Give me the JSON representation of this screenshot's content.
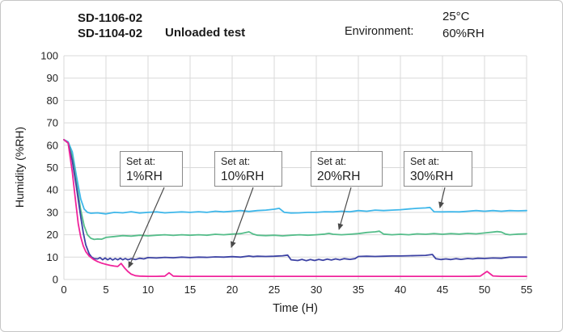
{
  "header": {
    "model_line1": "SD-1106-02",
    "model_line2": "SD-1104-02",
    "test_label": "Unloaded test",
    "environment_label": "Environment:",
    "environment_temp": "25°C",
    "environment_rh": "60%RH"
  },
  "chart_data": {
    "type": "line",
    "title": "Unloaded test",
    "xlabel": "Time (H)",
    "ylabel": "Humidity (%RH)",
    "xlim": [
      0,
      55
    ],
    "ylim": [
      0,
      100
    ],
    "xticks": [
      0,
      5,
      10,
      15,
      20,
      25,
      30,
      35,
      40,
      45,
      50,
      55
    ],
    "yticks": [
      0,
      10,
      20,
      30,
      40,
      50,
      60,
      70,
      80,
      90,
      100
    ],
    "grid": true,
    "grid_color": "#d9d9d9",
    "tick_color": "#222222",
    "arrow_color": "#4a4a4a",
    "series": [
      {
        "name": "Set at: 30%RH",
        "color": "#3eb7ea",
        "points": [
          [
            0,
            62.5
          ],
          [
            0.5,
            61.5
          ],
          [
            1,
            57
          ],
          [
            1.5,
            46
          ],
          [
            2,
            36
          ],
          [
            2.4,
            31.5
          ],
          [
            2.8,
            30
          ],
          [
            3.2,
            29.6
          ],
          [
            4,
            29.8
          ],
          [
            5,
            29.3
          ],
          [
            6,
            30
          ],
          [
            7,
            29.8
          ],
          [
            8,
            30.3
          ],
          [
            9,
            29.7
          ],
          [
            10,
            30
          ],
          [
            11,
            30.2
          ],
          [
            12,
            29.8
          ],
          [
            13,
            30
          ],
          [
            14,
            30.2
          ],
          [
            15,
            30
          ],
          [
            16,
            30.3
          ],
          [
            17,
            30
          ],
          [
            18,
            30.5
          ],
          [
            19,
            30.2
          ],
          [
            20,
            30.5
          ],
          [
            21,
            30.8
          ],
          [
            22,
            30.4
          ],
          [
            23,
            30.8
          ],
          [
            24,
            31
          ],
          [
            25,
            31.4
          ],
          [
            25.6,
            31.8
          ],
          [
            26.2,
            30
          ],
          [
            27,
            29.7
          ],
          [
            28,
            29.8
          ],
          [
            29,
            30
          ],
          [
            30,
            30
          ],
          [
            31,
            30.3
          ],
          [
            32,
            30.2
          ],
          [
            33,
            30.5
          ],
          [
            34,
            30.3
          ],
          [
            35,
            30.8
          ],
          [
            36,
            30.5
          ],
          [
            37,
            31
          ],
          [
            38,
            30.8
          ],
          [
            39,
            31
          ],
          [
            40,
            31.2
          ],
          [
            41,
            31.5
          ],
          [
            42,
            31.8
          ],
          [
            43,
            32
          ],
          [
            43.5,
            32.2
          ],
          [
            44,
            30.3
          ],
          [
            45,
            30.2
          ],
          [
            46,
            30.3
          ],
          [
            47,
            30.2
          ],
          [
            48,
            30.5
          ],
          [
            49,
            30.8
          ],
          [
            50,
            30.5
          ],
          [
            51,
            30.8
          ],
          [
            52,
            30.5
          ],
          [
            53,
            30.8
          ],
          [
            54,
            30.7
          ],
          [
            55,
            30.8
          ]
        ]
      },
      {
        "name": "Set at: 20%RH",
        "color": "#55bd8a",
        "points": [
          [
            0,
            62.5
          ],
          [
            0.5,
            61
          ],
          [
            1,
            55
          ],
          [
            1.5,
            43
          ],
          [
            2,
            31
          ],
          [
            2.4,
            24
          ],
          [
            2.8,
            20
          ],
          [
            3.2,
            18.4
          ],
          [
            3.6,
            17.9
          ],
          [
            4,
            18.1
          ],
          [
            4.5,
            18
          ],
          [
            5,
            18.8
          ],
          [
            6,
            19.2
          ],
          [
            7,
            19.6
          ],
          [
            8,
            19.4
          ],
          [
            9,
            19.8
          ],
          [
            10,
            19.5
          ],
          [
            11,
            19.8
          ],
          [
            12,
            20
          ],
          [
            13,
            19.7
          ],
          [
            14,
            20
          ],
          [
            15,
            19.8
          ],
          [
            16,
            20
          ],
          [
            17,
            19.8
          ],
          [
            18,
            20.2
          ],
          [
            19,
            20
          ],
          [
            20,
            20.3
          ],
          [
            21,
            20.5
          ],
          [
            22,
            21.3
          ],
          [
            22.5,
            20.3
          ],
          [
            23,
            19.8
          ],
          [
            24,
            19.6
          ],
          [
            25,
            19.8
          ],
          [
            26,
            19.5
          ],
          [
            27,
            19.8
          ],
          [
            28,
            20
          ],
          [
            29,
            19.8
          ],
          [
            30,
            20
          ],
          [
            31,
            20.3
          ],
          [
            31.5,
            20.6
          ],
          [
            32,
            20.2
          ],
          [
            33,
            20
          ],
          [
            34,
            20.2
          ],
          [
            35,
            20.5
          ],
          [
            36,
            21
          ],
          [
            37,
            21.3
          ],
          [
            37.5,
            21.6
          ],
          [
            38,
            20.3
          ],
          [
            39,
            20
          ],
          [
            40,
            20.2
          ],
          [
            41,
            20
          ],
          [
            42,
            20.4
          ],
          [
            43,
            20.2
          ],
          [
            44,
            20.5
          ],
          [
            45,
            20.2
          ],
          [
            46,
            20.5
          ],
          [
            47,
            20.3
          ],
          [
            48,
            20.6
          ],
          [
            49,
            20.4
          ],
          [
            50,
            20.8
          ],
          [
            51,
            21.2
          ],
          [
            51.5,
            21.4
          ],
          [
            52,
            21.2
          ],
          [
            52.5,
            20.3
          ],
          [
            53,
            20
          ],
          [
            54,
            20.3
          ],
          [
            55,
            20.4
          ]
        ]
      },
      {
        "name": "Set at: 10%RH",
        "color": "#3d43a4",
        "points": [
          [
            0,
            62.5
          ],
          [
            0.5,
            61
          ],
          [
            1,
            53
          ],
          [
            1.5,
            41
          ],
          [
            2,
            28
          ],
          [
            2.3,
            21
          ],
          [
            2.6,
            15.5
          ],
          [
            3,
            11.5
          ],
          [
            3.3,
            10
          ],
          [
            3.6,
            9.3
          ],
          [
            4,
            9.2
          ],
          [
            4.3,
            9.8
          ],
          [
            4.6,
            8.8
          ],
          [
            4.9,
            9.6
          ],
          [
            5.2,
            8.8
          ],
          [
            5.5,
            9.5
          ],
          [
            5.8,
            8.7
          ],
          [
            6.1,
            9.4
          ],
          [
            6.4,
            8.8
          ],
          [
            6.7,
            9.5
          ],
          [
            7,
            8.8
          ],
          [
            7.3,
            9.4
          ],
          [
            7.6,
            8.8
          ],
          [
            8,
            9.3
          ],
          [
            8.5,
            8.9
          ],
          [
            9,
            9.5
          ],
          [
            9.5,
            9.2
          ],
          [
            10,
            9.8
          ],
          [
            11,
            9.6
          ],
          [
            12,
            9.9
          ],
          [
            13,
            9.7
          ],
          [
            14,
            10
          ],
          [
            15,
            9.8
          ],
          [
            16,
            10
          ],
          [
            17,
            9.9
          ],
          [
            18,
            10.1
          ],
          [
            19,
            10
          ],
          [
            20,
            10.2
          ],
          [
            21,
            10
          ],
          [
            22,
            10.5
          ],
          [
            22.5,
            10.2
          ],
          [
            23,
            10.4
          ],
          [
            24,
            10.3
          ],
          [
            25,
            10.4
          ],
          [
            26,
            10.6
          ],
          [
            26.6,
            10.9
          ],
          [
            27,
            8.8
          ],
          [
            27.8,
            8.5
          ],
          [
            28.3,
            9
          ],
          [
            28.8,
            8.4
          ],
          [
            29.3,
            8.9
          ],
          [
            29.8,
            8.5
          ],
          [
            30.3,
            9
          ],
          [
            30.8,
            8.6
          ],
          [
            31.3,
            9.1
          ],
          [
            31.8,
            8.7
          ],
          [
            32.3,
            9.2
          ],
          [
            32.8,
            8.8
          ],
          [
            33.3,
            9.3
          ],
          [
            34,
            9
          ],
          [
            34.6,
            9.3
          ],
          [
            35,
            10.3
          ],
          [
            36,
            10.4
          ],
          [
            37,
            10.3
          ],
          [
            38,
            10.4
          ],
          [
            39,
            10.5
          ],
          [
            40,
            10.5
          ],
          [
            41,
            10.6
          ],
          [
            42,
            10.7
          ],
          [
            43,
            10.8
          ],
          [
            43.8,
            11.2
          ],
          [
            44.2,
            9.3
          ],
          [
            44.8,
            8.9
          ],
          [
            45.4,
            9.2
          ],
          [
            46,
            8.9
          ],
          [
            46.6,
            9.3
          ],
          [
            47.2,
            9
          ],
          [
            48,
            9.4
          ],
          [
            48.6,
            9.2
          ],
          [
            49.2,
            9.5
          ],
          [
            50,
            9.4
          ],
          [
            51,
            9.6
          ],
          [
            52,
            9.5
          ],
          [
            53,
            10
          ],
          [
            54,
            10
          ],
          [
            55,
            10
          ]
        ]
      },
      {
        "name": "Set at: 1%RH",
        "color": "#f0239b",
        "points": [
          [
            0,
            62.5
          ],
          [
            0.5,
            61
          ],
          [
            1,
            48
          ],
          [
            1.3,
            38
          ],
          [
            1.7,
            25
          ],
          [
            2,
            19
          ],
          [
            2.3,
            15
          ],
          [
            2.6,
            12.5
          ],
          [
            3,
            10.5
          ],
          [
            3.5,
            9
          ],
          [
            4,
            8
          ],
          [
            4.5,
            7.3
          ],
          [
            5,
            6.8
          ],
          [
            5.5,
            6.3
          ],
          [
            6,
            6
          ],
          [
            6.4,
            5.8
          ],
          [
            6.8,
            7.2
          ],
          [
            7.2,
            5.2
          ],
          [
            7.6,
            3.6
          ],
          [
            8,
            2.4
          ],
          [
            8.5,
            1.7
          ],
          [
            9,
            1.5
          ],
          [
            10,
            1.4
          ],
          [
            11,
            1.4
          ],
          [
            12,
            1.5
          ],
          [
            12.5,
            3
          ],
          [
            13,
            1.5
          ],
          [
            14,
            1.4
          ],
          [
            16,
            1.4
          ],
          [
            18,
            1.4
          ],
          [
            20,
            1.4
          ],
          [
            22,
            1.4
          ],
          [
            24,
            1.4
          ],
          [
            26,
            1.4
          ],
          [
            28,
            1.4
          ],
          [
            30,
            1.4
          ],
          [
            32,
            1.4
          ],
          [
            34,
            1.4
          ],
          [
            36,
            1.4
          ],
          [
            38,
            1.4
          ],
          [
            40,
            1.4
          ],
          [
            42,
            1.4
          ],
          [
            44,
            1.4
          ],
          [
            46,
            1.4
          ],
          [
            48,
            1.4
          ],
          [
            49.5,
            1.5
          ],
          [
            50.3,
            3.6
          ],
          [
            51,
            1.6
          ],
          [
            52,
            1.4
          ],
          [
            53,
            1.4
          ],
          [
            54,
            1.4
          ],
          [
            55,
            1.4
          ]
        ]
      }
    ],
    "annotations": [
      {
        "label": "Set at:",
        "value": "1%RH",
        "target_t": 7.7,
        "target_v": 5.4
      },
      {
        "label": "Set at:",
        "value": "10%RH",
        "target_t": 19.9,
        "target_v": 14.4
      },
      {
        "label": "Set at:",
        "value": "20%RH",
        "target_t": 32.7,
        "target_v": 22.4
      },
      {
        "label": "Set at:",
        "value": "30%RH",
        "target_t": 44.7,
        "target_v": 32.1
      }
    ]
  }
}
